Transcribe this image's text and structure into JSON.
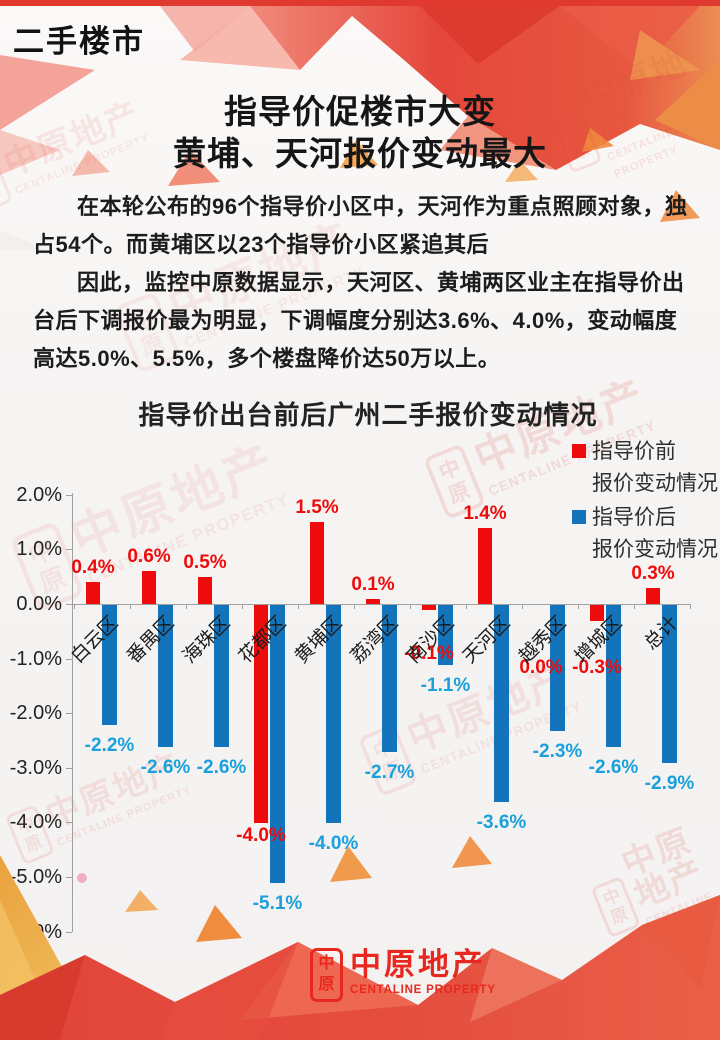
{
  "banner": {
    "label": "二手楼市"
  },
  "title": {
    "line1": "指导价促楼市大变",
    "line2": "黄埔、天河报价变动最大"
  },
  "paragraphs": {
    "p1": "在本轮公布的96个指导价小区中，天河作为重点照顾对象，独占54个。而黄埔区以23个指导价小区紧追其后",
    "p2": "因此，监控中原数据显示，天河区、黄埔两区业主在指导价出台后下调报价最为明显，下调幅度分别达3.6%、4.0%，变动幅度高达5.0%、5.5%，多个楼盘降价达50万以上。"
  },
  "chart_data": {
    "type": "bar",
    "title": "指导价出台前后广州二手报价变动情况",
    "categories": [
      "白云区",
      "番禺区",
      "海珠区",
      "花都区",
      "黄埔区",
      "荔湾区",
      "南沙区",
      "天河区",
      "越秀区",
      "增城区",
      "总计"
    ],
    "series": [
      {
        "name": "指导价前报价变动情况",
        "legend_line1": "指导价前",
        "legend_line2": "报价变动情况",
        "color": "#ee0b0b",
        "label_color": "#ee0b0b",
        "values": [
          0.4,
          0.6,
          0.5,
          -4.0,
          1.5,
          0.1,
          -0.1,
          1.4,
          0.0,
          -0.3,
          0.3
        ],
        "labels": [
          "0.4%",
          "0.6%",
          "0.5%",
          "-4.0%",
          "1.5%",
          "0.1%",
          "-0.1%",
          "1.4%",
          "0.0%",
          "-0.3%",
          "0.3%"
        ]
      },
      {
        "name": "指导价后报价变动情况",
        "legend_line1": "指导价后",
        "legend_line2": "报价变动情况",
        "color": "#1474bb",
        "label_color": "#1aa0dc",
        "values": [
          -2.2,
          -2.6,
          -2.6,
          -5.1,
          -4.0,
          -2.7,
          -1.1,
          -3.6,
          -2.3,
          -2.6,
          -2.9
        ],
        "labels": [
          "-2.2%",
          "-2.6%",
          "-2.6%",
          "-5.1%",
          "-4.0%",
          "-2.7%",
          "-1.1%",
          "-3.6%",
          "-2.3%",
          "-2.6%",
          "-2.9%"
        ]
      }
    ],
    "ylim": [
      -6.0,
      2.0
    ],
    "ytick_labels": [
      "2.0%",
      "1.0%",
      "0.0%",
      "-1.0%",
      "-2.0%",
      "-3.0%",
      "-4.0%",
      "-5.0%",
      "-6.0%"
    ],
    "legend_position": "top-right",
    "grid": false
  },
  "footer_logo": {
    "seal_top": "中",
    "seal_bottom": "原",
    "name": "中原地产",
    "subname": "CENTALINE PROPERTY"
  },
  "watermark": {
    "seal_top": "中",
    "seal_bottom": "原",
    "name": "中原地产",
    "subname": "CENTALINE PROPERTY"
  },
  "colors": {
    "accent_red": "#e5473b",
    "bar_red": "#ee0b0b",
    "bar_blue": "#1474bb",
    "blue_label": "#1aa0dc",
    "top_strip": "#e03a30"
  }
}
